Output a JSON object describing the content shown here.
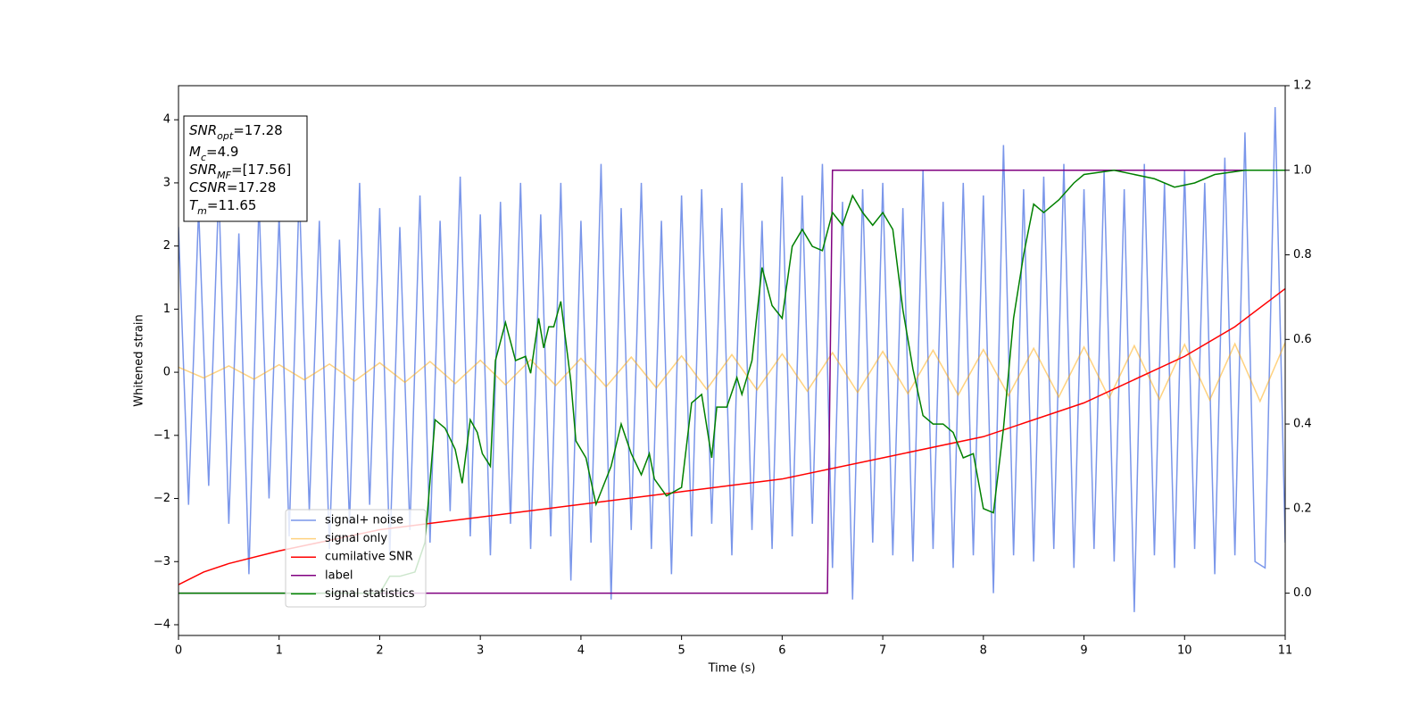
{
  "chart_data": {
    "type": "line",
    "xlabel": "Time (s)",
    "ylabel": "Whitened strain",
    "xlim": [
      0,
      11
    ],
    "ylim": [
      -4.17,
      4.54
    ],
    "y2lim": [
      -0.1,
      1.2
    ],
    "xticks": [
      0,
      1,
      2,
      3,
      4,
      5,
      6,
      7,
      8,
      9,
      10,
      11
    ],
    "yticks": [
      {
        "value": -4,
        "label": "−4"
      },
      {
        "value": -3,
        "label": "−3"
      },
      {
        "value": -2,
        "label": "−2"
      },
      {
        "value": -1,
        "label": "−1"
      },
      0,
      1,
      2,
      3,
      4
    ],
    "y2ticks": [
      {
        "value": 0,
        "label": "0.0"
      },
      {
        "value": 0.2,
        "label": "0.2"
      },
      {
        "value": 0.4,
        "label": "0.4"
      },
      {
        "value": 0.6,
        "label": "0.6"
      },
      {
        "value": 0.8,
        "label": "0.8"
      },
      {
        "value": 1,
        "label": "1.0"
      },
      {
        "value": 1.2,
        "label": "1.2"
      }
    ],
    "legend_loc": "lower left",
    "annotations": [
      {
        "text": "SNR",
        "sub": "opt",
        "value": "=17.28"
      },
      {
        "text": "M",
        "sub": "c",
        "value": "=4.9"
      },
      {
        "text": "SNR",
        "sub": "MF",
        "value": "=[17.56]"
      },
      {
        "text": "CSNR",
        "value": "=17.28"
      },
      {
        "text": "T",
        "sub": "m",
        "value": "=11.65"
      }
    ],
    "series": [
      {
        "name": "signal+ noise",
        "color": "#4169e1",
        "opacity": 0.7,
        "x": [
          0,
          0.1,
          0.2,
          0.3,
          0.4,
          0.5,
          0.6,
          0.7,
          0.8,
          0.9,
          1,
          1.1,
          1.2,
          1.3,
          1.4,
          1.5,
          1.6,
          1.7,
          1.8,
          1.9,
          2,
          2.1,
          2.2,
          2.3,
          2.4,
          2.5,
          2.6,
          2.7,
          2.8,
          2.9,
          3,
          3.1,
          3.2,
          3.3,
          3.4,
          3.5,
          3.6,
          3.7,
          3.8,
          3.9,
          4,
          4.1,
          4.2,
          4.3,
          4.4,
          4.5,
          4.6,
          4.7,
          4.8,
          4.9,
          5,
          5.1,
          5.2,
          5.3,
          5.4,
          5.5,
          5.6,
          5.7,
          5.8,
          5.9,
          6,
          6.1,
          6.2,
          6.3,
          6.4,
          6.5,
          6.6,
          6.7,
          6.8,
          6.9,
          7,
          7.1,
          7.2,
          7.3,
          7.4,
          7.5,
          7.6,
          7.7,
          7.8,
          7.9,
          8,
          8.1,
          8.2,
          8.3,
          8.4,
          8.5,
          8.6,
          8.7,
          8.8,
          8.9,
          9,
          9.1,
          9.2,
          9.3,
          9.4,
          9.5,
          9.6,
          9.7,
          9.8,
          9.9,
          10,
          10.1,
          10.2,
          10.3,
          10.4,
          10.5,
          10.6,
          10.7,
          10.8,
          10.9,
          11
        ],
        "values": [
          2.3,
          -2.1,
          2.6,
          -1.8,
          2.9,
          -2.4,
          2.2,
          -3.2,
          2.7,
          -2.0,
          2.5,
          -2.6,
          2.9,
          -2.2,
          2.4,
          -2.8,
          2.1,
          -2.4,
          3.0,
          -2.1,
          2.6,
          -2.9,
          2.3,
          -2.5,
          2.8,
          -2.7,
          2.4,
          -2.2,
          3.1,
          -2.6,
          2.5,
          -2.9,
          2.7,
          -2.4,
          3.0,
          -2.8,
          2.5,
          -2.6,
          3.0,
          -3.3,
          2.4,
          -2.7,
          3.3,
          -3.6,
          2.6,
          -2.5,
          3.0,
          -2.8,
          2.4,
          -3.2,
          2.8,
          -2.6,
          2.9,
          -2.4,
          2.6,
          -2.9,
          3.0,
          -2.5,
          2.4,
          -2.8,
          3.1,
          -2.6,
          2.8,
          -2.4,
          3.3,
          -3.1,
          2.7,
          -3.6,
          2.9,
          -2.7,
          3.0,
          -2.9,
          2.6,
          -3.0,
          3.2,
          -2.8,
          2.7,
          -3.1,
          3.0,
          -2.9,
          2.8,
          -3.5,
          3.6,
          -2.9,
          2.9,
          -3.0,
          3.1,
          -2.8,
          3.3,
          -3.1,
          2.9,
          -2.8,
          3.2,
          -3.0,
          2.9,
          -3.8,
          3.3,
          -2.9,
          3.0,
          -3.1,
          3.2,
          -2.8,
          3.0,
          -3.2,
          3.4,
          -2.9,
          3.8,
          -3.0,
          -3.1,
          4.2,
          -2.7
        ]
      },
      {
        "name": "signal only",
        "color": "#ffa500",
        "opacity": 0.5,
        "x": [
          0,
          0.25,
          0.5,
          0.75,
          1,
          1.25,
          1.5,
          1.75,
          2,
          2.25,
          2.5,
          2.75,
          3,
          3.25,
          3.5,
          3.75,
          4,
          4.25,
          4.5,
          4.75,
          5,
          5.25,
          5.5,
          5.75,
          6,
          6.25,
          6.5,
          6.75,
          7,
          7.25,
          7.5,
          7.75,
          8,
          8.25,
          8.5,
          8.75,
          9,
          9.25,
          9.5,
          9.75,
          10,
          10.25,
          10.5,
          10.75,
          11
        ],
        "values": [
          0.08,
          -0.09,
          0.1,
          -0.11,
          0.12,
          -0.12,
          0.13,
          -0.14,
          0.15,
          -0.16,
          0.17,
          -0.18,
          0.19,
          -0.2,
          0.2,
          -0.21,
          0.22,
          -0.23,
          0.24,
          -0.25,
          0.26,
          -0.27,
          0.28,
          -0.28,
          0.29,
          -0.3,
          0.31,
          -0.32,
          0.33,
          -0.34,
          0.35,
          -0.36,
          0.36,
          -0.37,
          0.38,
          -0.39,
          0.4,
          -0.41,
          0.42,
          -0.43,
          0.44,
          -0.44,
          0.45,
          -0.46,
          0.47
        ]
      },
      {
        "name": "cumilative SNR",
        "color": "#ff0000",
        "axis": "y2",
        "x": [
          0,
          0.25,
          0.5,
          1,
          2,
          3,
          4,
          5,
          6,
          7,
          8,
          9,
          10,
          10.5,
          11
        ],
        "values": [
          0.02,
          0.05,
          0.07,
          0.1,
          0.15,
          0.18,
          0.21,
          0.24,
          0.27,
          0.32,
          0.37,
          0.45,
          0.56,
          0.63,
          0.72
        ]
      },
      {
        "name": "label",
        "color": "#800080",
        "axis": "y2",
        "x": [
          0,
          6.45,
          6.5,
          11
        ],
        "values": [
          0,
          0,
          1,
          1
        ]
      },
      {
        "name": "signal statistics",
        "color": "#008000",
        "axis": "y2",
        "x": [
          0,
          2,
          2.1,
          2.2,
          2.35,
          2.45,
          2.55,
          2.65,
          2.75,
          2.82,
          2.9,
          2.97,
          3.02,
          3.1,
          3.15,
          3.25,
          3.35,
          3.45,
          3.5,
          3.58,
          3.63,
          3.68,
          3.73,
          3.8,
          3.9,
          3.95,
          4.05,
          4.15,
          4.3,
          4.4,
          4.5,
          4.6,
          4.68,
          4.73,
          4.85,
          5,
          5.1,
          5.2,
          5.3,
          5.35,
          5.45,
          5.55,
          5.6,
          5.7,
          5.8,
          5.9,
          6,
          6.1,
          6.2,
          6.3,
          6.4,
          6.5,
          6.6,
          6.7,
          6.8,
          6.9,
          7,
          7.1,
          7.2,
          7.3,
          7.4,
          7.5,
          7.6,
          7.7,
          7.8,
          7.9,
          8,
          8.1,
          8.2,
          8.3,
          8.4,
          8.5,
          8.6,
          8.75,
          8.9,
          9,
          9.3,
          9.7,
          9.9,
          10.1,
          10.3,
          10.6,
          11
        ],
        "values": [
          0,
          0,
          0.04,
          0.04,
          0.05,
          0.12,
          0.41,
          0.39,
          0.34,
          0.26,
          0.41,
          0.38,
          0.33,
          0.3,
          0.55,
          0.64,
          0.55,
          0.56,
          0.52,
          0.65,
          0.58,
          0.63,
          0.63,
          0.69,
          0.5,
          0.36,
          0.32,
          0.21,
          0.3,
          0.4,
          0.33,
          0.28,
          0.33,
          0.27,
          0.23,
          0.25,
          0.45,
          0.47,
          0.32,
          0.44,
          0.44,
          0.51,
          0.47,
          0.55,
          0.77,
          0.68,
          0.65,
          0.82,
          0.86,
          0.82,
          0.81,
          0.9,
          0.87,
          0.94,
          0.9,
          0.87,
          0.9,
          0.86,
          0.67,
          0.53,
          0.42,
          0.4,
          0.4,
          0.38,
          0.32,
          0.33,
          0.2,
          0.19,
          0.39,
          0.65,
          0.8,
          0.92,
          0.9,
          0.93,
          0.97,
          0.99,
          1,
          0.98,
          0.96,
          0.97,
          0.99,
          1,
          1
        ]
      }
    ]
  }
}
